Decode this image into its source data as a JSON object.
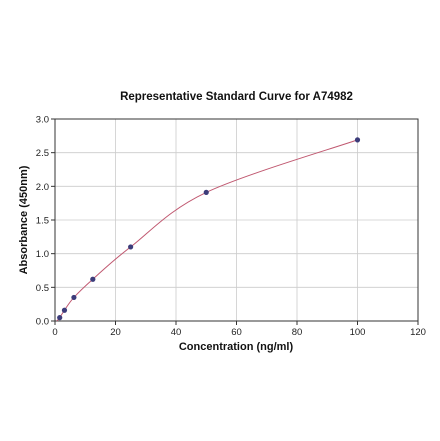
{
  "chart_data": {
    "type": "scatter",
    "title": "Representative Standard Curve for A74982",
    "xlabel": "Concentration (ng/ml)",
    "ylabel": "Absorbance (450nm)",
    "xlim": [
      0,
      120
    ],
    "ylim": [
      0,
      3.0
    ],
    "x_ticks": [
      "0",
      "20",
      "40",
      "60",
      "80",
      "100",
      "120"
    ],
    "y_ticks": [
      "0.0",
      "0.5",
      "1.0",
      "1.5",
      "2.0",
      "2.5",
      "3.0"
    ],
    "grid": true,
    "series": [
      {
        "x": [
          1.56,
          3.13,
          6.25,
          12.5,
          25,
          50,
          100
        ],
        "y": [
          0.05,
          0.16,
          0.35,
          0.62,
          1.1,
          1.91,
          2.69
        ],
        "fit": "smooth curve"
      }
    ],
    "colors": {
      "points": "#3c3c7a",
      "curve": "#c05870",
      "grid": "#cccccc"
    }
  }
}
